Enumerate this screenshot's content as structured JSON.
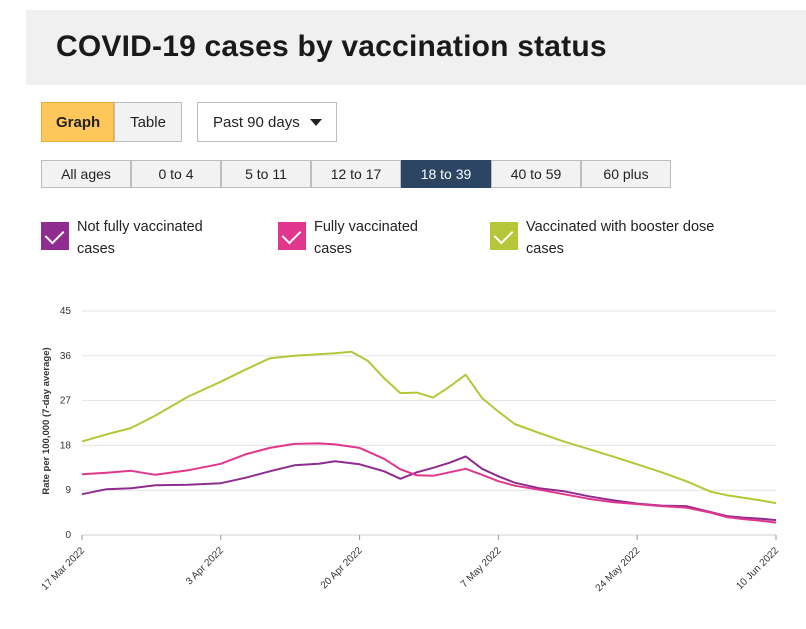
{
  "header": {
    "title": "COVID-19 cases by vaccination status"
  },
  "view_toggle": {
    "graph_label": "Graph",
    "table_label": "Table"
  },
  "period": {
    "selected": "Past 90 days"
  },
  "age_groups": {
    "items": [
      "All ages",
      "0 to 4",
      "5 to 11",
      "12 to 17",
      "18 to 39",
      "40 to 59",
      "60 plus"
    ],
    "selected": "18 to 39"
  },
  "colors": {
    "not_fully": "#8e2c8f",
    "fully": "#e0368e",
    "booster": "#b5c639",
    "grid": "#e3e3e3",
    "button_active": "#fdc75a",
    "age_active": "#2b4562"
  },
  "legend": {
    "not_fully": {
      "line1": "Not fully vaccinated",
      "line2": "cases"
    },
    "fully": {
      "line1": "Fully vaccinated",
      "line2": "cases"
    },
    "booster": {
      "line1": "Vaccinated with booster dose",
      "line2": "cases"
    }
  },
  "chart_data": {
    "type": "line",
    "ylabel": "Rate per 100,000 (7-day average)",
    "ylim": [
      0,
      45
    ],
    "yticks": [
      0,
      9,
      18,
      27,
      36,
      45
    ],
    "x_ticks": [
      "17 Mar 2022",
      "3 Apr 2022",
      "20 Apr 2022",
      "7 May 2022",
      "24 May 2022",
      "10 Jun 2022"
    ],
    "x_start": "2022-03-17",
    "x_end": "2022-06-10",
    "grid": "horizontal",
    "series": [
      {
        "name": "Not fully vaccinated cases",
        "color": "#8e2c8f",
        "points": [
          [
            "2022-03-17",
            8.2
          ],
          [
            "2022-03-20",
            9.2
          ],
          [
            "2022-03-23",
            9.4
          ],
          [
            "2022-03-26",
            10.0
          ],
          [
            "2022-03-30",
            10.1
          ],
          [
            "2022-04-03",
            10.4
          ],
          [
            "2022-04-06",
            11.5
          ],
          [
            "2022-04-09",
            12.8
          ],
          [
            "2022-04-12",
            14.0
          ],
          [
            "2022-04-15",
            14.3
          ],
          [
            "2022-04-17",
            14.8
          ],
          [
            "2022-04-20",
            14.2
          ],
          [
            "2022-04-23",
            12.8
          ],
          [
            "2022-04-25",
            11.3
          ],
          [
            "2022-04-27",
            12.6
          ],
          [
            "2022-04-29",
            13.5
          ],
          [
            "2022-05-01",
            14.5
          ],
          [
            "2022-05-03",
            15.8
          ],
          [
            "2022-05-05",
            13.3
          ],
          [
            "2022-05-07",
            11.8
          ],
          [
            "2022-05-09",
            10.5
          ],
          [
            "2022-05-12",
            9.4
          ],
          [
            "2022-05-15",
            8.8
          ],
          [
            "2022-05-18",
            7.8
          ],
          [
            "2022-05-21",
            7.0
          ],
          [
            "2022-05-24",
            6.3
          ],
          [
            "2022-05-27",
            5.9
          ],
          [
            "2022-05-30",
            5.8
          ],
          [
            "2022-06-02",
            4.6
          ],
          [
            "2022-06-04",
            3.8
          ],
          [
            "2022-06-06",
            3.5
          ],
          [
            "2022-06-08",
            3.3
          ],
          [
            "2022-06-10",
            3.0
          ]
        ]
      },
      {
        "name": "Fully vaccinated cases",
        "color": "#e0368e",
        "points": [
          [
            "2022-03-17",
            12.2
          ],
          [
            "2022-03-20",
            12.5
          ],
          [
            "2022-03-23",
            12.9
          ],
          [
            "2022-03-26",
            12.1
          ],
          [
            "2022-03-30",
            13.0
          ],
          [
            "2022-04-03",
            14.3
          ],
          [
            "2022-04-06",
            16.2
          ],
          [
            "2022-04-09",
            17.5
          ],
          [
            "2022-04-12",
            18.3
          ],
          [
            "2022-04-15",
            18.4
          ],
          [
            "2022-04-17",
            18.2
          ],
          [
            "2022-04-20",
            17.5
          ],
          [
            "2022-04-23",
            15.3
          ],
          [
            "2022-04-25",
            13.2
          ],
          [
            "2022-04-27",
            12.0
          ],
          [
            "2022-04-29",
            11.9
          ],
          [
            "2022-05-01",
            12.6
          ],
          [
            "2022-05-03",
            13.3
          ],
          [
            "2022-05-05",
            12.1
          ],
          [
            "2022-05-07",
            10.8
          ],
          [
            "2022-05-09",
            9.9
          ],
          [
            "2022-05-12",
            9.1
          ],
          [
            "2022-05-15",
            8.2
          ],
          [
            "2022-05-18",
            7.3
          ],
          [
            "2022-05-21",
            6.6
          ],
          [
            "2022-05-24",
            6.2
          ],
          [
            "2022-05-27",
            5.8
          ],
          [
            "2022-05-30",
            5.5
          ],
          [
            "2022-06-02",
            4.5
          ],
          [
            "2022-06-04",
            3.6
          ],
          [
            "2022-06-06",
            3.2
          ],
          [
            "2022-06-08",
            2.9
          ],
          [
            "2022-06-10",
            2.5
          ]
        ]
      },
      {
        "name": "Vaccinated with booster dose cases",
        "color": "#b5c639",
        "points": [
          [
            "2022-03-17",
            18.8
          ],
          [
            "2022-03-20",
            20.2
          ],
          [
            "2022-03-23",
            21.5
          ],
          [
            "2022-03-26",
            24.0
          ],
          [
            "2022-03-30",
            27.8
          ],
          [
            "2022-04-03",
            30.8
          ],
          [
            "2022-04-06",
            33.2
          ],
          [
            "2022-04-09",
            35.5
          ],
          [
            "2022-04-12",
            36.0
          ],
          [
            "2022-04-15",
            36.3
          ],
          [
            "2022-04-17",
            36.5
          ],
          [
            "2022-04-19",
            36.8
          ],
          [
            "2022-04-21",
            35.0
          ],
          [
            "2022-04-23",
            31.5
          ],
          [
            "2022-04-25",
            28.5
          ],
          [
            "2022-04-27",
            28.6
          ],
          [
            "2022-04-29",
            27.6
          ],
          [
            "2022-05-01",
            29.8
          ],
          [
            "2022-05-03",
            32.2
          ],
          [
            "2022-05-05",
            27.5
          ],
          [
            "2022-05-07",
            24.8
          ],
          [
            "2022-05-09",
            22.3
          ],
          [
            "2022-05-12",
            20.5
          ],
          [
            "2022-05-15",
            18.8
          ],
          [
            "2022-05-18",
            17.3
          ],
          [
            "2022-05-21",
            15.8
          ],
          [
            "2022-05-24",
            14.2
          ],
          [
            "2022-05-27",
            12.6
          ],
          [
            "2022-05-30",
            10.8
          ],
          [
            "2022-06-02",
            8.7
          ],
          [
            "2022-06-04",
            8.0
          ],
          [
            "2022-06-06",
            7.5
          ],
          [
            "2022-06-08",
            7.0
          ],
          [
            "2022-06-10",
            6.4
          ]
        ]
      }
    ]
  }
}
